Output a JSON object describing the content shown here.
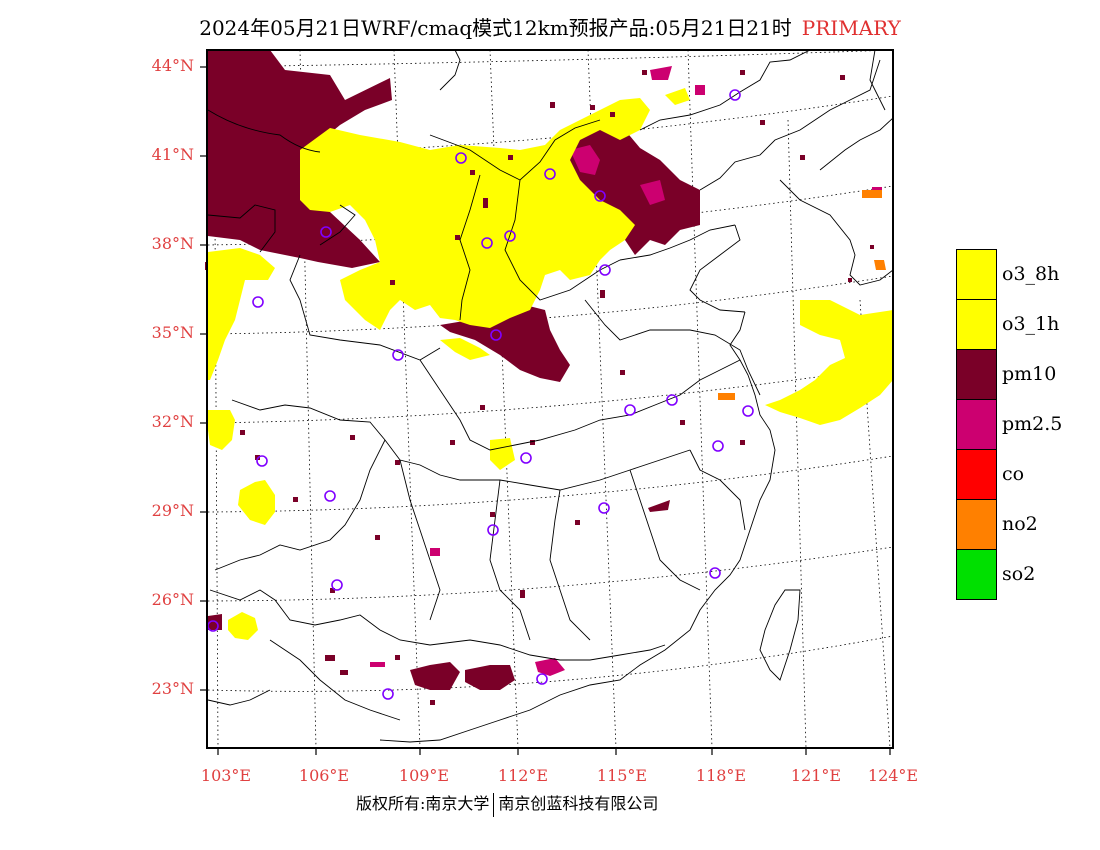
{
  "title": {
    "main": "2024年05月21日WRF/cmaq模式12km预报产品:05月21日21时",
    "tag": "PRIMARY"
  },
  "axes": {
    "lat_labels": [
      "44°N",
      "41°N",
      "38°N",
      "35°N",
      "32°N",
      "29°N",
      "26°N",
      "23°N"
    ],
    "lon_labels": [
      "103°E",
      "106°E",
      "109°E",
      "112°E",
      "115°E",
      "118°E",
      "121°E",
      "124°E"
    ]
  },
  "legend": [
    {
      "label": "o3_8h",
      "color": "#ffff00"
    },
    {
      "label": "o3_1h",
      "color": "#ffff00"
    },
    {
      "label": "pm10",
      "color": "#7a0028"
    },
    {
      "label": "pm2.5",
      "color": "#cc0070"
    },
    {
      "label": "co",
      "color": "#ff0000"
    },
    {
      "label": "no2",
      "color": "#ff8000"
    },
    {
      "label": "so2",
      "color": "#00e000"
    }
  ],
  "footer": {
    "left": "版权所有:南京大学",
    "right": "南京创蓝科技有限公司"
  }
}
